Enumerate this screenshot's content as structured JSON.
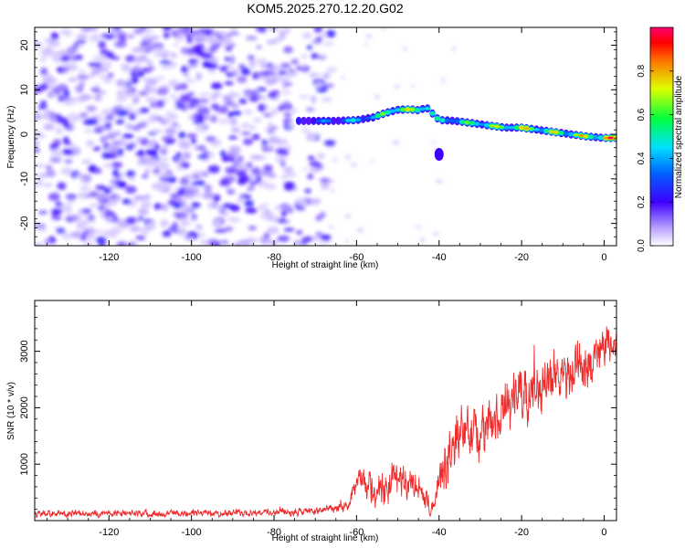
{
  "figure_title": "KOM5.2025.270.12.20.G02",
  "chart_data": [
    {
      "type": "heatmap",
      "title": "KOM5.2025.270.12.20.G02",
      "xlabel": "Height of straight line (km)",
      "ylabel": "Frequency (Hz)",
      "xlim": [
        -138,
        3
      ],
      "ylim": [
        -25,
        24
      ],
      "xticks": [
        -120,
        -100,
        -80,
        -60,
        -40,
        -20,
        0
      ],
      "yticks": [
        -20,
        -10,
        0,
        10,
        20
      ],
      "colorbar": {
        "label": "Normalized spectral amplitude",
        "range": [
          0,
          1
        ],
        "ticks": [
          0.0,
          0.2,
          0.4,
          0.6,
          0.8
        ],
        "tick_labels": [
          "0.0",
          "0.2",
          "0.4",
          "0.6",
          "0.8"
        ]
      },
      "noise_region_km": [
        -138,
        -70
      ],
      "noise_amplitude": 0.15,
      "signal_track": [
        {
          "x": -74,
          "y": 3.0,
          "amp": 0.3
        },
        {
          "x": -66,
          "y": 3.0,
          "amp": 0.4
        },
        {
          "x": -60,
          "y": 3.2,
          "amp": 0.5
        },
        {
          "x": -56,
          "y": 3.8,
          "amp": 0.55
        },
        {
          "x": -53,
          "y": 4.8,
          "amp": 0.7
        },
        {
          "x": -50,
          "y": 5.5,
          "amp": 0.85
        },
        {
          "x": -47,
          "y": 5.6,
          "amp": 0.75
        },
        {
          "x": -45,
          "y": 5.4,
          "amp": 0.7
        },
        {
          "x": -43,
          "y": 6.0,
          "amp": 0.8
        },
        {
          "x": -40,
          "y": 3.2,
          "amp": 0.5
        },
        {
          "x": -36,
          "y": 3.0,
          "amp": 0.6
        },
        {
          "x": -32,
          "y": 2.5,
          "amp": 0.65
        },
        {
          "x": -28,
          "y": 2.0,
          "amp": 0.75
        },
        {
          "x": -24,
          "y": 1.5,
          "amp": 0.7
        },
        {
          "x": -20,
          "y": 1.5,
          "amp": 0.85
        },
        {
          "x": -16,
          "y": 1.0,
          "amp": 0.75
        },
        {
          "x": -12,
          "y": 0.5,
          "amp": 0.8
        },
        {
          "x": -8,
          "y": 0.0,
          "amp": 0.75
        },
        {
          "x": -4,
          "y": -0.5,
          "amp": 0.8
        },
        {
          "x": 0,
          "y": -0.8,
          "amp": 0.95
        },
        {
          "x": 3,
          "y": -0.8,
          "amp": 0.9
        }
      ],
      "side_blob": {
        "x": -40,
        "y": -4.5,
        "amp": 0.2
      }
    },
    {
      "type": "line",
      "xlabel": "Height of straight line (km)",
      "ylabel": "SNR (10 * v/v)",
      "xlim": [
        -138,
        3
      ],
      "ylim": [
        0,
        3900
      ],
      "xticks": [
        -120,
        -100,
        -80,
        -60,
        -40,
        -20,
        0
      ],
      "yticks": [
        1000,
        2000,
        3000
      ],
      "series": [
        {
          "name": "SNR",
          "color": "#ee2a2a",
          "envelope": [
            {
              "x": -138,
              "base": 120,
              "spread": 100
            },
            {
              "x": -100,
              "base": 130,
              "spread": 100
            },
            {
              "x": -70,
              "base": 160,
              "spread": 120
            },
            {
              "x": -62,
              "base": 250,
              "spread": 160
            },
            {
              "x": -60,
              "base": 700,
              "spread": 350
            },
            {
              "x": -55,
              "base": 500,
              "spread": 500
            },
            {
              "x": -50,
              "base": 700,
              "spread": 600
            },
            {
              "x": -46,
              "base": 600,
              "spread": 500
            },
            {
              "x": -42,
              "base": 200,
              "spread": 250
            },
            {
              "x": -39,
              "base": 900,
              "spread": 800
            },
            {
              "x": -35,
              "base": 1600,
              "spread": 700
            },
            {
              "x": -30,
              "base": 1500,
              "spread": 800
            },
            {
              "x": -25,
              "base": 1900,
              "spread": 800
            },
            {
              "x": -20,
              "base": 2200,
              "spread": 900
            },
            {
              "x": -15,
              "base": 2400,
              "spread": 900
            },
            {
              "x": -10,
              "base": 2600,
              "spread": 900
            },
            {
              "x": -5,
              "base": 2700,
              "spread": 800
            },
            {
              "x": 0,
              "base": 3100,
              "spread": 700
            },
            {
              "x": 3,
              "base": 3000,
              "spread": 600
            }
          ]
        }
      ]
    }
  ]
}
